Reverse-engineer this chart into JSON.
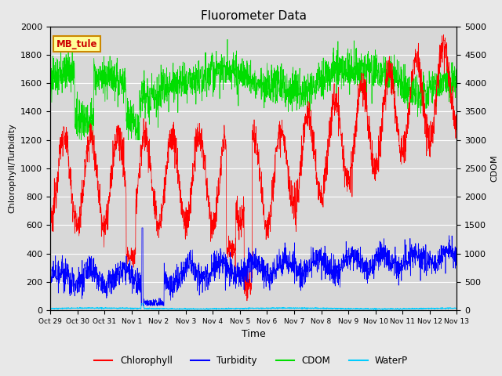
{
  "title": "Fluorometer Data",
  "xlabel": "Time",
  "ylabel_left": "Chlorophyll/Turbidity",
  "ylabel_right": "CDOM",
  "annotation": "MB_tule",
  "ylim_left": [
    0,
    2000
  ],
  "ylim_right": [
    0,
    5000
  ],
  "xlim_days": [
    0,
    15
  ],
  "x_tick_labels": [
    "Oct 29",
    "Oct 30",
    "Oct 31",
    "Nov 1",
    "Nov 2",
    "Nov 3",
    "Nov 4",
    "Nov 5",
    "Nov 6",
    "Nov 7",
    "Nov 8",
    "Nov 9",
    "Nov 10",
    "Nov 11",
    "Nov 12",
    "Nov 13"
  ],
  "x_tick_positions": [
    0,
    1,
    2,
    3,
    4,
    5,
    6,
    7,
    8,
    9,
    10,
    11,
    12,
    13,
    14,
    15
  ],
  "colors": {
    "chlorophyll": "#ff0000",
    "turbidity": "#0000ff",
    "cdom": "#00dd00",
    "waterp": "#00ccff"
  },
  "legend_labels": [
    "Chlorophyll",
    "Turbidity",
    "CDOM",
    "WaterP"
  ],
  "background_color": "#d8d8d8",
  "grid_color": "#ffffff",
  "fig_color": "#e8e8e8",
  "annotation_bg": "#ffff99",
  "annotation_border": "#cc8800",
  "yticks_left": [
    0,
    200,
    400,
    600,
    800,
    1000,
    1200,
    1400,
    1600,
    1800,
    2000
  ],
  "yticks_right": [
    0,
    500,
    1000,
    1500,
    2000,
    2500,
    3000,
    3500,
    4000,
    4500,
    5000
  ]
}
